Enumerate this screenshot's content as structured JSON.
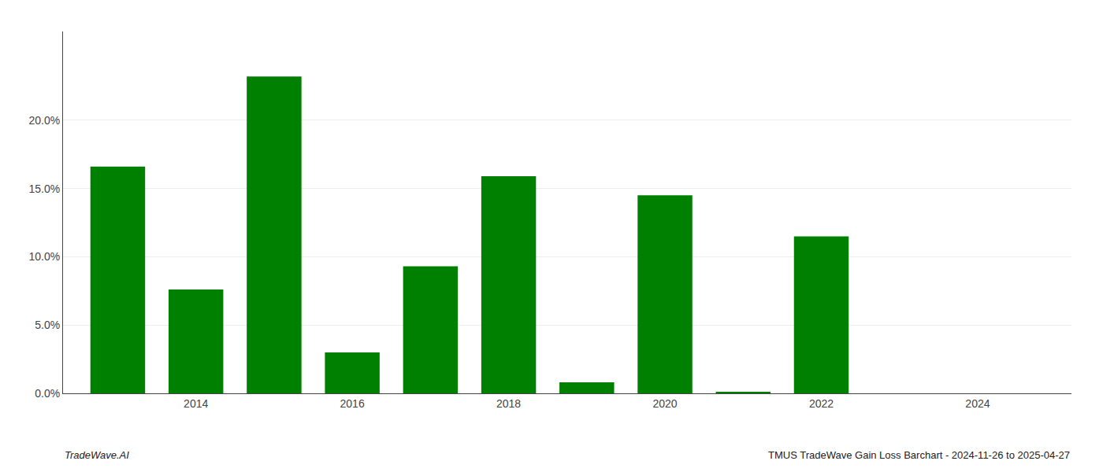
{
  "chart_data": {
    "type": "bar",
    "x": [
      2013,
      2014,
      2015,
      2016,
      2017,
      2018,
      2019,
      2020,
      2021,
      2022,
      2023,
      2024
    ],
    "values": [
      0.166,
      0.076,
      0.232,
      0.03,
      0.093,
      0.159,
      0.008,
      0.145,
      0.001,
      0.115,
      0.0,
      0.0
    ],
    "color": "#008000",
    "xlim": [
      2012.3,
      2025.2
    ],
    "xticks": [
      2014,
      2016,
      2018,
      2020,
      2022,
      2024
    ],
    "ylim": [
      0,
      0.265
    ],
    "yticks": [
      {
        "value": 0.0,
        "label": "0.0%"
      },
      {
        "value": 0.05,
        "label": "5.0%"
      },
      {
        "value": 0.1,
        "label": "10.0%"
      },
      {
        "value": 0.15,
        "label": "15.0%"
      },
      {
        "value": 0.2,
        "label": "20.0%"
      }
    ],
    "grid": true,
    "annotations": [
      "TradeWave.AI",
      "TMUS TradeWave Gain Loss Barchart - 2024-11-26 to 2025-04-27"
    ]
  }
}
